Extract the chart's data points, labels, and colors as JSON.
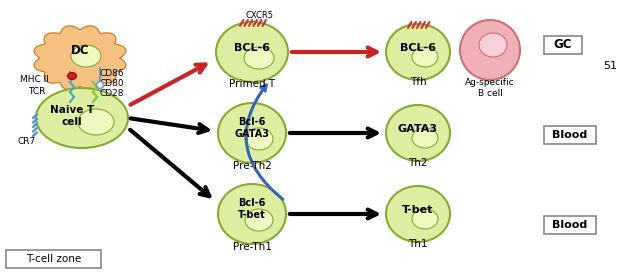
{
  "bg_color": "#ffffff",
  "cell_green_light": "#ddeea0",
  "cell_green_border": "#88aa30",
  "dc_color": "#f5c080",
  "dc_border": "#c88030",
  "b_cell_color": "#f0b0b8",
  "b_cell_border": "#d07070",
  "nucleus_color": "#eef8c0",
  "b_nucleus_color": "#f8d0d8",
  "box_color": "#ffffff",
  "box_border": "#888888",
  "tcell_zone_label": "T-cell zone",
  "naiveT_label": "Naive T\ncell",
  "dc_label": "DC",
  "cr7_label": "CR7",
  "tcr_label": "TCR",
  "mhcii_label": "MHC II",
  "cd28_label": "CD28",
  "cd80_label": "CD80",
  "cd86_label": "CD86",
  "preTh1_label": "Pre-Th1",
  "preTh1_sub": "Bcl-6\nT-bet",
  "preTh2_label": "Pre-Th2",
  "preTh2_sub": "Bcl-6\nGATA3",
  "primedT_label": "Primed T",
  "primedT_sub": "BCL-6",
  "cxcr5_label": "CXCR5",
  "th1_label": "Th1",
  "th1_sub": "T-bet",
  "th2_label": "Th2",
  "th2_sub": "GATA3",
  "tfh_label": "Tfh",
  "tfh_sub": "BCL-6",
  "agspec_label": "Ag-specific\nB cell",
  "blood1_label": "Blood",
  "blood2_label": "Blood",
  "gc_label": "GC",
  "num_label": "51"
}
